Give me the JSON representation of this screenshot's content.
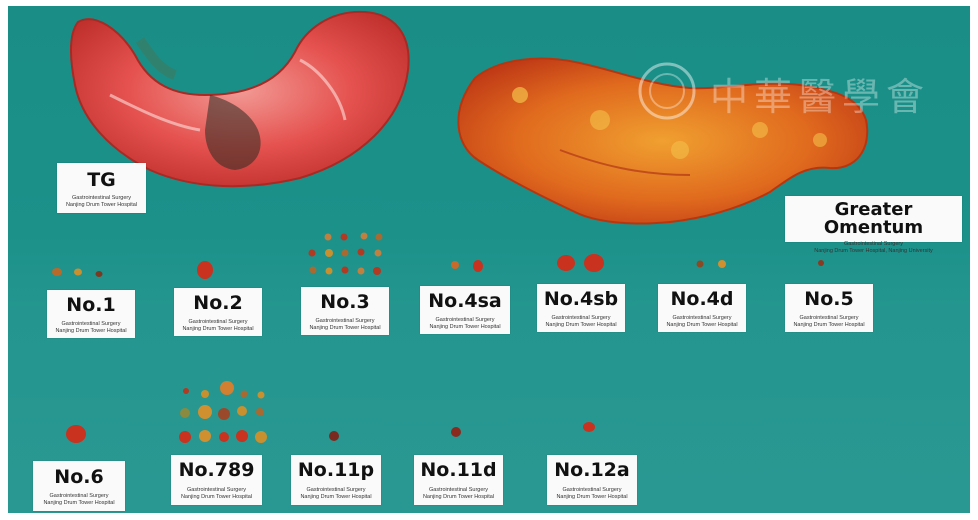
{
  "colors": {
    "drape": "#1b918a",
    "stomach": "#e5524f",
    "omentum": "#e06a1e",
    "node": "#c8321e"
  },
  "watermark": "中華醫學會",
  "specimens": {
    "tg": {
      "title": "TG",
      "line1": "Gastrointestinal Surgery",
      "line2": "Nanjing Drum Tower Hospital"
    },
    "omentum": {
      "title": "Greater Omentum",
      "line1": "Gastrointestinal Surgery",
      "line2": "Nanjing Drum Tower Hospital, Nanjing University"
    }
  },
  "stations_row1": [
    {
      "title": "No.1",
      "line1": "Gastrointestinal Surgery",
      "line2": "Nanjing Drum Tower Hospital"
    },
    {
      "title": "No.2",
      "line1": "Gastrointestinal Surgery",
      "line2": "Nanjing Drum Tower Hospital"
    },
    {
      "title": "No.3",
      "line1": "Gastrointestinal Surgery",
      "line2": "Nanjing Drum Tower Hospital"
    },
    {
      "title": "No.4sa",
      "line1": "Gastrointestinal Surgery",
      "line2": "Nanjing Drum Tower Hospital"
    },
    {
      "title": "No.4sb",
      "line1": "Gastrointestinal Surgery",
      "line2": "Nanjing Drum Tower Hospital"
    },
    {
      "title": "No.4d",
      "line1": "Gastrointestinal Surgery",
      "line2": "Nanjing Drum Tower Hospital"
    },
    {
      "title": "No.5",
      "line1": "Gastrointestinal Surgery",
      "line2": "Nanjing Drum Tower Hospital"
    }
  ],
  "stations_row2": [
    {
      "title": "No.6",
      "line1": "Gastrointestinal Surgery",
      "line2": "Nanjing Drum Tower Hospital"
    },
    {
      "title": "No.789",
      "line1": "Gastrointestinal Surgery",
      "line2": "Nanjing Drum Tower Hospital"
    },
    {
      "title": "No.11p",
      "line1": "Gastrointestinal Surgery",
      "line2": "Nanjing Drum Tower Hospital"
    },
    {
      "title": "No.11d",
      "line1": "Gastrointestinal Surgery",
      "line2": "Nanjing Drum Tower Hospital"
    },
    {
      "title": "No.12a",
      "line1": "Gastrointestinal Surgery",
      "line2": "Nanjing Drum Tower Hospital"
    }
  ]
}
